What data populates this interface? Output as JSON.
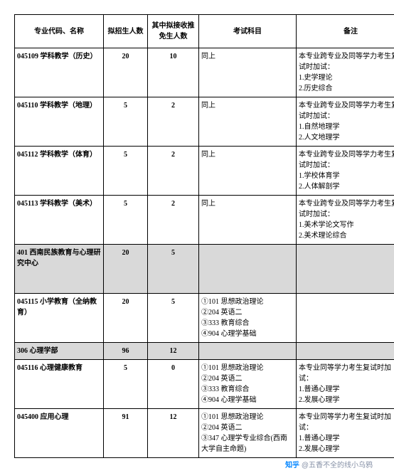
{
  "headers": {
    "col1": "专业代码、名称",
    "col2": "拟招生人数",
    "col3": "其中拟接收推免生人数",
    "col4": "考试科目",
    "col5": "备注"
  },
  "rows": [
    {
      "code": "045109 学科教学（历史）",
      "num1": "20",
      "num2": "10",
      "subj": "同上",
      "note": "本专业跨专业及同等学力考生复试时加试：\n1.史学理论\n2.历史综合",
      "bold": true,
      "shaded": false,
      "tall": true
    },
    {
      "code": "045110 学科教学（地理）",
      "num1": "5",
      "num2": "2",
      "subj": "同上",
      "note": "本专业跨专业及同等学力考生复试时加试：\n1.自然地理学\n2.人文地理学",
      "bold": true,
      "shaded": false,
      "tall": true
    },
    {
      "code": "045112 学科教学（体育）",
      "num1": "5",
      "num2": "2",
      "subj": "同上",
      "note": "本专业跨专业及同等学力考生复试时加试：\n1.学校体育学\n2.人体解剖学",
      "bold": true,
      "shaded": false,
      "tall": true
    },
    {
      "code": "045113 学科教学（美术）",
      "num1": "5",
      "num2": "2",
      "subj": "同上",
      "note": "本专业跨专业及同等学力考生复试时加试：\n1.美术学论文写作\n2.美术理论综合",
      "bold": true,
      "shaded": false,
      "tall": true
    },
    {
      "code": "401 西南民族教育与心理研究中心",
      "num1": "20",
      "num2": "5",
      "subj": "",
      "note": "",
      "bold": true,
      "shaded": true,
      "tall": true
    },
    {
      "code": "045115 小学教育（全纳教育）",
      "num1": "20",
      "num2": "5",
      "subj": "①101 思想政治理论\n②204 英语二\n③333 教育综合\n④904 心理学基础",
      "note": "",
      "bold": true,
      "shaded": false,
      "tall": true
    },
    {
      "code": "306 心理学部",
      "num1": "96",
      "num2": "12",
      "subj": "",
      "note": "",
      "bold": true,
      "shaded": true,
      "tall": false
    },
    {
      "code": "045116 心理健康教育",
      "num1": "5",
      "num2": "0",
      "subj": "①101 思想政治理论\n②204 英语二\n③333 教育综合\n④904 心理学基础",
      "note": "本专业同等学力考生复试时加试：\n1.普通心理学\n2.发展心理学",
      "bold": true,
      "shaded": false,
      "tall": true
    },
    {
      "code": "045400 应用心理",
      "num1": "91",
      "num2": "12",
      "subj": "①101 思想政治理论\n②204 英语二\n③347 心理学专业综合(西南大学自主命题)",
      "note": "本专业同等学力考生复试时加试：\n1.普通心理学\n2.发展心理学",
      "bold": true,
      "shaded": false,
      "tall": true
    }
  ],
  "watermark": {
    "brand": "知乎",
    "user": "@五香不全的线小乌鸦"
  }
}
